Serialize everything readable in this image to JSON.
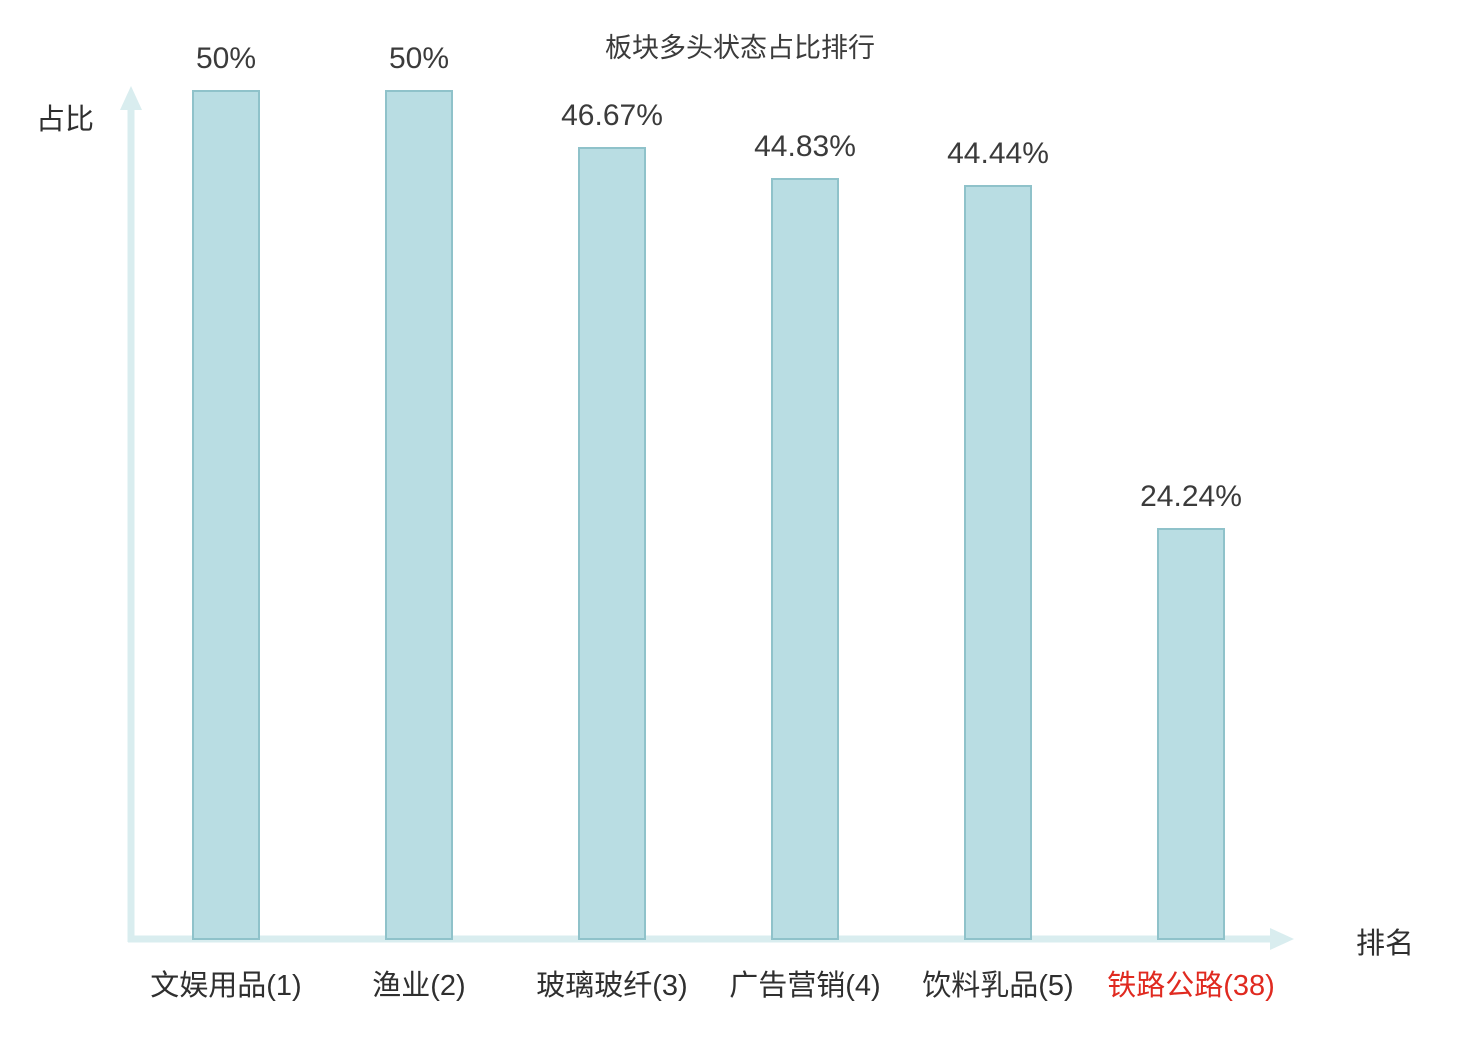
{
  "chart_data": {
    "type": "bar",
    "title": "板块多头状态占比排行",
    "xlabel": "排名",
    "ylabel": "占比",
    "categories": [
      "文娱用品(1)",
      "渔业(2)",
      "玻璃玻纤(3)",
      "广告营销(4)",
      "饮料乳品(5)",
      "铁路公路(38)"
    ],
    "values": [
      50,
      50,
      46.67,
      44.83,
      44.44,
      24.24
    ],
    "value_labels": [
      "50%",
      "50%",
      "46.67%",
      "44.83%",
      "44.44%",
      "24.24%"
    ],
    "highlighted_category_index": 5,
    "ylim": [
      0,
      50
    ],
    "grid": false,
    "legend": "none",
    "colors": {
      "bar_fill": "#b9dde3",
      "bar_border": "#8fc2ca",
      "axis": "#d9edef",
      "label_text": "#3b3b3b",
      "highlight_text": "#e02a20"
    }
  }
}
